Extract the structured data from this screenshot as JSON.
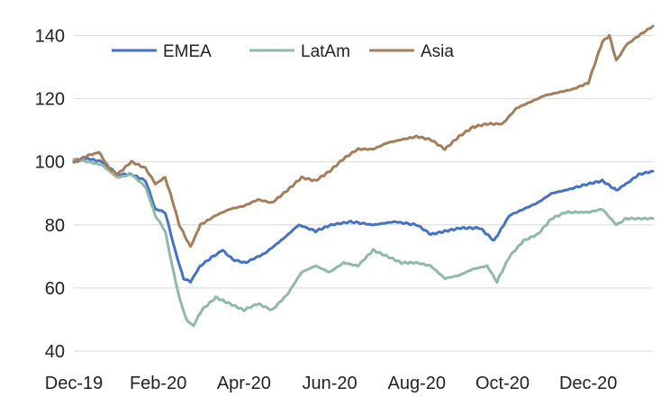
{
  "chart_data": {
    "type": "line",
    "title": "",
    "xlabel": "",
    "ylabel": "",
    "ylim": [
      40,
      145
    ],
    "yticks": [
      40,
      60,
      80,
      100,
      120,
      140
    ],
    "xlim": [
      "2019-12-31",
      "2021-02-15"
    ],
    "xticks": [
      {
        "date": "2019-12-31",
        "label": "Dec-19"
      },
      {
        "date": "2020-02-29",
        "label": "Feb-20"
      },
      {
        "date": "2020-04-30",
        "label": "Apr-20"
      },
      {
        "date": "2020-06-30",
        "label": "Jun-20"
      },
      {
        "date": "2020-08-31",
        "label": "Aug-20"
      },
      {
        "date": "2020-10-31",
        "label": "Oct-20"
      },
      {
        "date": "2020-12-31",
        "label": "Dec-20"
      }
    ],
    "grid": "horizontal",
    "legend_position": "top",
    "series": [
      {
        "name": "EMEA",
        "color": "#4472C4",
        "points": [
          [
            "2019-12-31",
            100
          ],
          [
            "2020-01-10",
            101
          ],
          [
            "2020-01-20",
            100
          ],
          [
            "2020-01-31",
            96
          ],
          [
            "2020-02-10",
            96
          ],
          [
            "2020-02-20",
            94
          ],
          [
            "2020-02-27",
            85
          ],
          [
            "2020-03-05",
            84
          ],
          [
            "2020-03-12",
            72
          ],
          [
            "2020-03-18",
            63
          ],
          [
            "2020-03-23",
            62
          ],
          [
            "2020-03-30",
            67
          ],
          [
            "2020-04-08",
            70
          ],
          [
            "2020-04-15",
            72
          ],
          [
            "2020-04-22",
            69
          ],
          [
            "2020-05-01",
            68
          ],
          [
            "2020-05-15",
            71
          ],
          [
            "2020-05-29",
            76
          ],
          [
            "2020-06-08",
            80
          ],
          [
            "2020-06-20",
            78
          ],
          [
            "2020-07-01",
            80
          ],
          [
            "2020-07-15",
            81
          ],
          [
            "2020-07-31",
            80
          ],
          [
            "2020-08-15",
            81
          ],
          [
            "2020-08-31",
            80
          ],
          [
            "2020-09-10",
            77
          ],
          [
            "2020-09-20",
            78
          ],
          [
            "2020-10-01",
            79
          ],
          [
            "2020-10-15",
            79
          ],
          [
            "2020-10-25",
            75
          ],
          [
            "2020-11-05",
            83
          ],
          [
            "2020-11-15",
            85
          ],
          [
            "2020-11-25",
            87
          ],
          [
            "2020-12-05",
            90
          ],
          [
            "2020-12-15",
            91
          ],
          [
            "2020-12-31",
            93
          ],
          [
            "2021-01-10",
            94
          ],
          [
            "2021-01-20",
            91
          ],
          [
            "2021-01-27",
            93
          ],
          [
            "2021-02-05",
            96
          ],
          [
            "2021-02-15",
            97
          ]
        ]
      },
      {
        "name": "LatAm",
        "color": "#8FB9A8",
        "points": [
          [
            "2019-12-31",
            101
          ],
          [
            "2020-01-10",
            100
          ],
          [
            "2020-01-20",
            99
          ],
          [
            "2020-01-31",
            95
          ],
          [
            "2020-02-10",
            96
          ],
          [
            "2020-02-20",
            92
          ],
          [
            "2020-02-27",
            83
          ],
          [
            "2020-03-05",
            78
          ],
          [
            "2020-03-10",
            67
          ],
          [
            "2020-03-15",
            57
          ],
          [
            "2020-03-20",
            50
          ],
          [
            "2020-03-25",
            48
          ],
          [
            "2020-03-31",
            53
          ],
          [
            "2020-04-10",
            57
          ],
          [
            "2020-04-20",
            55
          ],
          [
            "2020-04-30",
            53
          ],
          [
            "2020-05-10",
            55
          ],
          [
            "2020-05-20",
            53
          ],
          [
            "2020-05-31",
            58
          ],
          [
            "2020-06-10",
            65
          ],
          [
            "2020-06-20",
            67
          ],
          [
            "2020-06-30",
            65
          ],
          [
            "2020-07-10",
            68
          ],
          [
            "2020-07-20",
            67
          ],
          [
            "2020-07-31",
            72
          ],
          [
            "2020-08-10",
            70
          ],
          [
            "2020-08-20",
            68
          ],
          [
            "2020-08-31",
            68
          ],
          [
            "2020-09-10",
            67
          ],
          [
            "2020-09-20",
            63
          ],
          [
            "2020-09-30",
            64
          ],
          [
            "2020-10-10",
            66
          ],
          [
            "2020-10-20",
            67
          ],
          [
            "2020-10-27",
            62
          ],
          [
            "2020-11-05",
            70
          ],
          [
            "2020-11-15",
            75
          ],
          [
            "2020-11-25",
            77
          ],
          [
            "2020-12-05",
            82
          ],
          [
            "2020-12-15",
            84
          ],
          [
            "2020-12-31",
            84
          ],
          [
            "2021-01-10",
            85
          ],
          [
            "2021-01-20",
            80
          ],
          [
            "2021-01-27",
            82
          ],
          [
            "2021-02-05",
            82
          ],
          [
            "2021-02-15",
            82
          ]
        ]
      },
      {
        "name": "Asia",
        "color": "#A47D5A",
        "points": [
          [
            "2019-12-31",
            100
          ],
          [
            "2020-01-10",
            102
          ],
          [
            "2020-01-18",
            103
          ],
          [
            "2020-01-25",
            98
          ],
          [
            "2020-01-31",
            96
          ],
          [
            "2020-02-10",
            100
          ],
          [
            "2020-02-20",
            98
          ],
          [
            "2020-02-27",
            93
          ],
          [
            "2020-03-05",
            95
          ],
          [
            "2020-03-10",
            88
          ],
          [
            "2020-03-15",
            80
          ],
          [
            "2020-03-23",
            73
          ],
          [
            "2020-03-30",
            80
          ],
          [
            "2020-04-10",
            83
          ],
          [
            "2020-04-20",
            85
          ],
          [
            "2020-04-30",
            86
          ],
          [
            "2020-05-10",
            88
          ],
          [
            "2020-05-20",
            87
          ],
          [
            "2020-05-31",
            91
          ],
          [
            "2020-06-10",
            95
          ],
          [
            "2020-06-20",
            94
          ],
          [
            "2020-06-30",
            97
          ],
          [
            "2020-07-10",
            101
          ],
          [
            "2020-07-20",
            104
          ],
          [
            "2020-07-31",
            104
          ],
          [
            "2020-08-10",
            106
          ],
          [
            "2020-08-20",
            107
          ],
          [
            "2020-08-31",
            108
          ],
          [
            "2020-09-10",
            107
          ],
          [
            "2020-09-20",
            104
          ],
          [
            "2020-09-30",
            108
          ],
          [
            "2020-10-10",
            111
          ],
          [
            "2020-10-20",
            112
          ],
          [
            "2020-10-31",
            112
          ],
          [
            "2020-11-10",
            117
          ],
          [
            "2020-11-20",
            119
          ],
          [
            "2020-11-30",
            121
          ],
          [
            "2020-12-10",
            122
          ],
          [
            "2020-12-20",
            123
          ],
          [
            "2020-12-31",
            125
          ],
          [
            "2021-01-10",
            138
          ],
          [
            "2021-01-15",
            140
          ],
          [
            "2021-01-20",
            132
          ],
          [
            "2021-01-27",
            137
          ],
          [
            "2021-02-05",
            140
          ],
          [
            "2021-02-15",
            143
          ]
        ]
      }
    ]
  }
}
